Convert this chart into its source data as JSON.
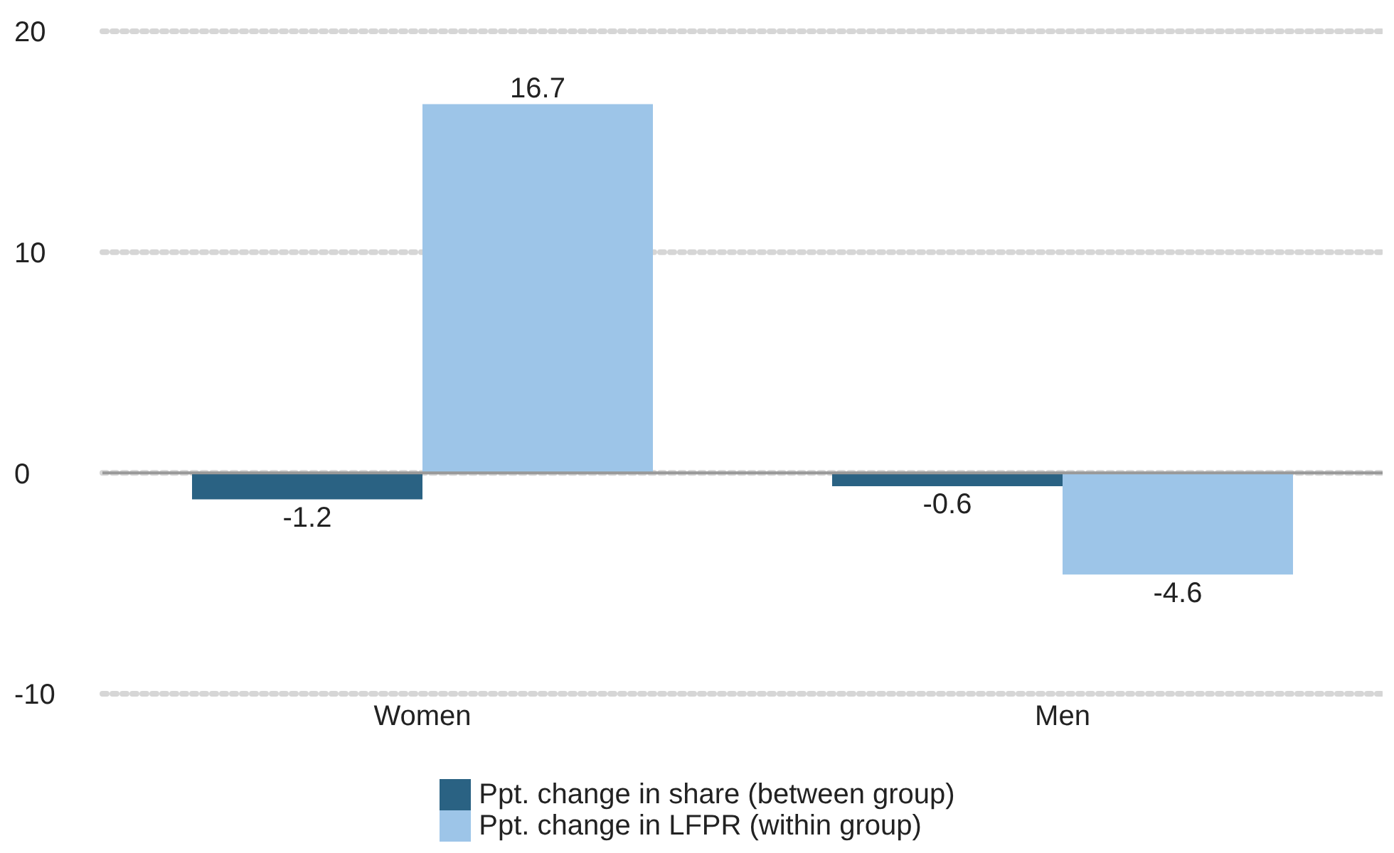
{
  "chart_data": {
    "type": "bar",
    "categories": [
      "Women",
      "Men"
    ],
    "series": [
      {
        "name": "Ppt. change in share (between group)",
        "color": "#2a6283",
        "values": [
          -1.2,
          -0.6
        ]
      },
      {
        "name": "Ppt. change in LFPR (within group)",
        "color": "#9dc5e8",
        "values": [
          16.7,
          -4.6
        ]
      }
    ],
    "ylim": [
      -10,
      20
    ],
    "yticks": [
      -10,
      0,
      10,
      20
    ],
    "grid": "y",
    "legend": "bottom",
    "data_labels": true,
    "ref_lines": [
      {
        "axis": "y",
        "value": 0,
        "color": "#999999"
      }
    ]
  }
}
